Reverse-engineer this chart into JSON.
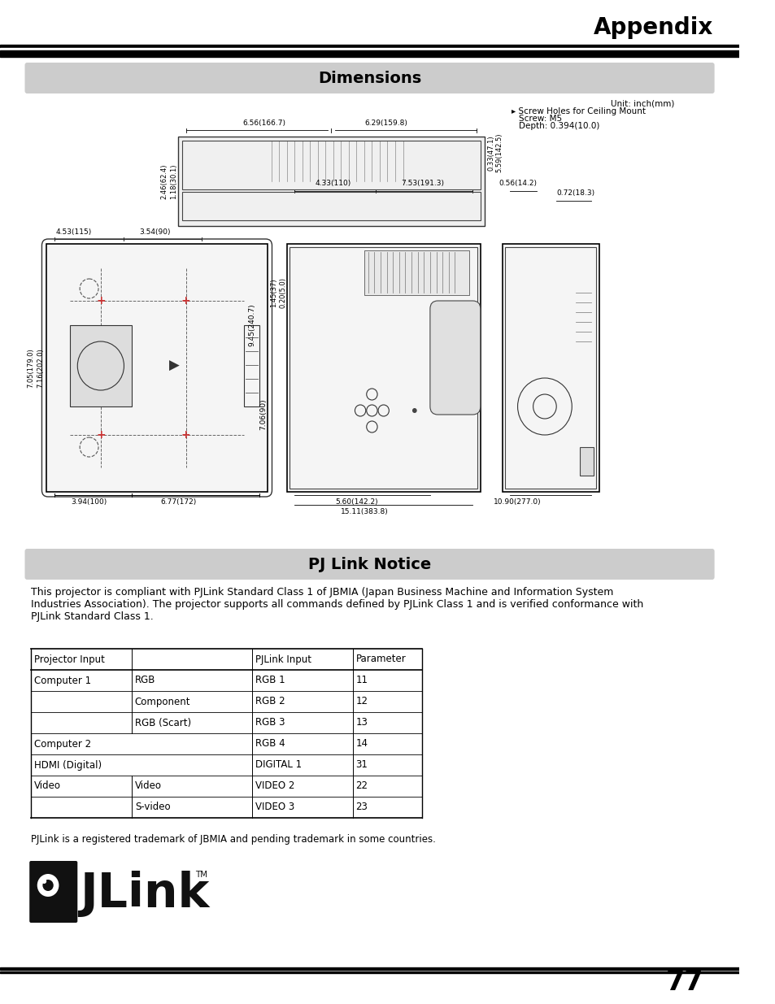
{
  "page_title": "Appendix",
  "section1_title": "Dimensions",
  "section2_title": "PJ Link Notice",
  "unit_note": "Unit: inch(mm)",
  "screw_note1": "Screw Holes for Ceiling Mount",
  "screw_note2": "Screw: M5",
  "screw_note3": "Depth: 0.394(10.0)",
  "pjlink_text": "This projector is compliant with PJLink Standard Class 1 of JBMIA (Japan Business Machine and Information System\nIndustries Association). The projector supports all commands defined by PJLink Class 1 and is verified conformance with\nPJLink Standard Class 1.",
  "trademark_text": "PJLink is a registered trademark of JBMIA and pending trademark in some countries.",
  "table_headers": [
    "Projector Input",
    "",
    "PJLink Input",
    "Parameter"
  ],
  "table_rows": [
    [
      "Computer 1",
      "RGB",
      "RGB 1",
      "11"
    ],
    [
      "",
      "Component",
      "RGB 2",
      "12"
    ],
    [
      "",
      "RGB (Scart)",
      "RGB 3",
      "13"
    ],
    [
      "Computer 2",
      "",
      "RGB 4",
      "14"
    ],
    [
      "HDMI (Digital)",
      "",
      "DIGITAL 1",
      "31"
    ],
    [
      "Video",
      "Video",
      "VIDEO 2",
      "22"
    ],
    [
      "",
      "S-video",
      "VIDEO 3",
      "23"
    ]
  ],
  "page_number": "77",
  "bg_color": "#ffffff",
  "section_bg_color": "#cccccc",
  "header_line_color": "#000000",
  "text_color": "#000000",
  "table_line_color": "#000000"
}
